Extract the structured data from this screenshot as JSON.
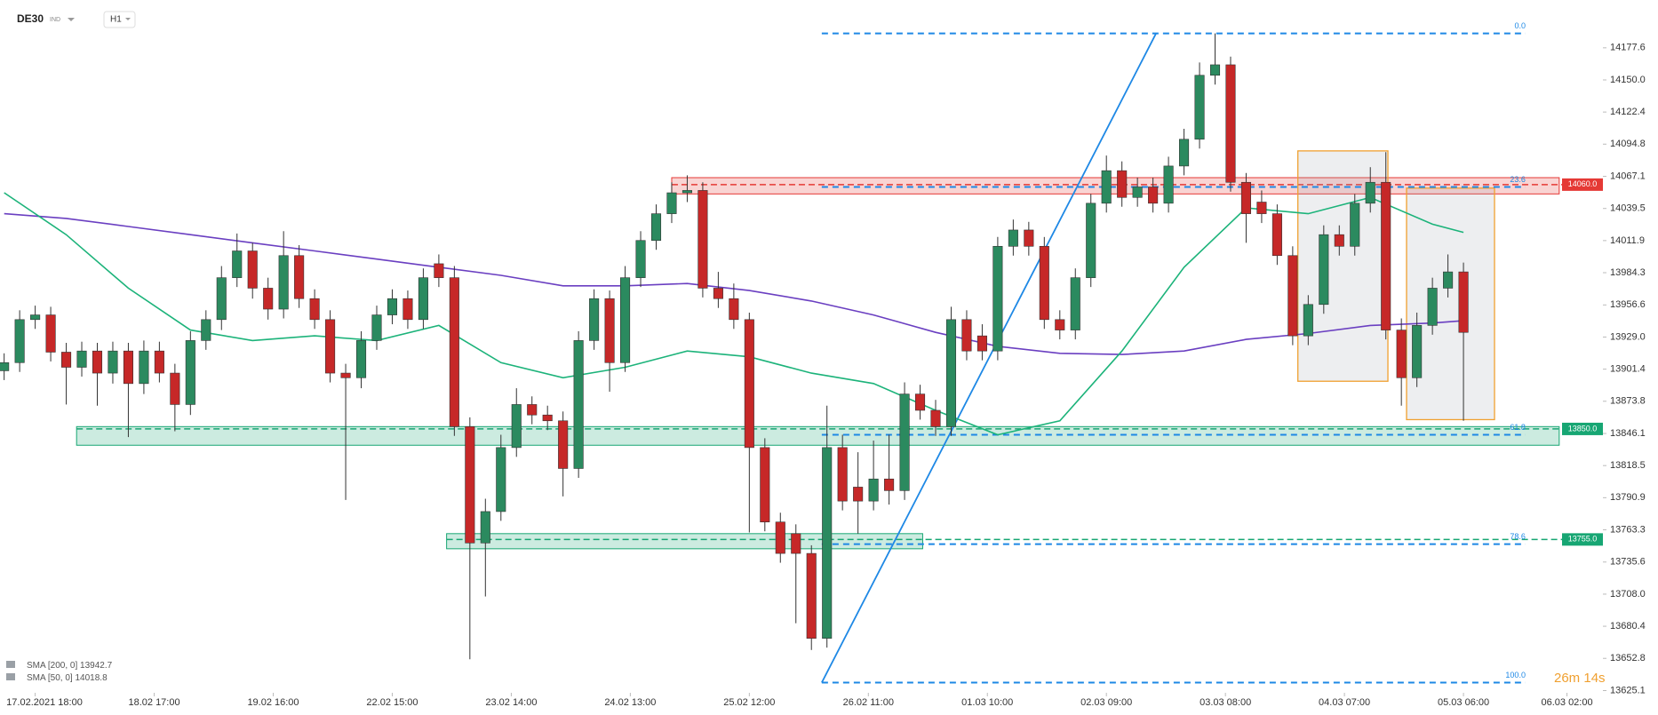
{
  "header": {
    "symbol": "DE30",
    "market": "IND",
    "interval": "H1"
  },
  "chart_data": {
    "type": "candlestick",
    "x": [
      -6,
      -3,
      0,
      3,
      6,
      9,
      12,
      15,
      18,
      21,
      24,
      27,
      30,
      33,
      36,
      39,
      42,
      45,
      48,
      51,
      54,
      57,
      60,
      63,
      66,
      69,
      72,
      75,
      78,
      81,
      84,
      87,
      90,
      93,
      96,
      99,
      102,
      105,
      108,
      111,
      114,
      117,
      120,
      123,
      126,
      129,
      132,
      135,
      138,
      141,
      144,
      147,
      150,
      153,
      156,
      159,
      162,
      165,
      168,
      171,
      174,
      177,
      180,
      183,
      186,
      189,
      192,
      195,
      198,
      201,
      204,
      207,
      210,
      213,
      216,
      219,
      222,
      225,
      228,
      231,
      234,
      237,
      240,
      243,
      246,
      249,
      252,
      255,
      258,
      261,
      264,
      267,
      270,
      273,
      276
    ],
    "open": [
      13900,
      13907,
      13944,
      13948,
      13916,
      13903,
      13917,
      13898,
      13917,
      13889,
      13917,
      13898,
      13871,
      13926,
      13944,
      13980,
      14003,
      13971,
      13953,
      13999,
      13962,
      13944,
      13898,
      13894,
      13926,
      13948,
      13962,
      13944,
      13992,
      13980,
      13852,
      13752,
      13779,
      13834,
      13871,
      13862,
      13857,
      13816,
      13926,
      13962,
      13907,
      13980,
      14012,
      14035,
      14053,
      14055,
      13971,
      13962,
      13944,
      13834,
      13770,
      13760,
      13743,
      13670,
      13834,
      13800,
      13788,
      13807,
      13797,
      13880,
      13866,
      13852,
      13944,
      13930,
      13917,
      14007,
      14021,
      14007,
      13944,
      13935,
      13980,
      14044,
      14072,
      14049,
      14058,
      14044,
      14076,
      14099,
      14154,
      14163,
      14062,
      14045,
      14035,
      13999,
      13930,
      13957,
      14017,
      14007,
      14044,
      14062,
      13935,
      13894,
      13939,
      13971,
      13985
    ],
    "high": [
      13915,
      13952,
      13956,
      13955,
      13924,
      13925,
      13924,
      13925,
      13924,
      13926,
      13925,
      13906,
      13934,
      13952,
      13990,
      14018,
      14010,
      13980,
      14020,
      14008,
      13970,
      13952,
      13906,
      13934,
      13956,
      13970,
      13969,
      13988,
      14000,
      13990,
      13860,
      13790,
      13845,
      13885,
      13878,
      13870,
      13865,
      13934,
      13970,
      13969,
      13990,
      14020,
      14043,
      14062,
      14068,
      14062,
      13985,
      13975,
      13950,
      13842,
      13778,
      13768,
      13750,
      13870,
      13845,
      13830,
      13840,
      13845,
      13890,
      13888,
      13875,
      13955,
      13952,
      13940,
      14015,
      14030,
      14028,
      14015,
      13952,
      13988,
      14052,
      14085,
      14080,
      14066,
      14066,
      14084,
      14108,
      14165,
      14190,
      14170,
      14070,
      14055,
      14043,
      14007,
      13965,
      14025,
      14025,
      14052,
      14075,
      14088,
      13945,
      13950,
      13980,
      14000,
      13993
    ],
    "low": [
      13892,
      13899,
      13936,
      13908,
      13871,
      13895,
      13870,
      13889,
      13843,
      13880,
      13890,
      13848,
      13862,
      13918,
      13935,
      13972,
      13962,
      13944,
      13945,
      13954,
      13936,
      13890,
      13789,
      13885,
      13918,
      13940,
      13936,
      13936,
      13972,
      13844,
      13652,
      13706,
      13771,
      13826,
      13854,
      13849,
      13792,
      13808,
      13918,
      13882,
      13899,
      13972,
      14004,
      14027,
      14045,
      13963,
      13954,
      13936,
      13761,
      13762,
      13735,
      13683,
      13660,
      13662,
      13780,
      13760,
      13780,
      13785,
      13789,
      13858,
      13844,
      13844,
      13909,
      13909,
      13909,
      13999,
      13999,
      13936,
      13927,
      13927,
      13972,
      14036,
      14041,
      14041,
      14036,
      14036,
      14068,
      14091,
      14146,
      14054,
      14010,
      14027,
      13991,
      13922,
      13922,
      13949,
      13999,
      13999,
      14036,
      13927,
      13870,
      13886,
      13931,
      13963,
      13857
    ],
    "close": [
      13907,
      13944,
      13948,
      13916,
      13903,
      13917,
      13898,
      13917,
      13889,
      13917,
      13898,
      13871,
      13926,
      13944,
      13980,
      14003,
      13971,
      13953,
      13999,
      13962,
      13944,
      13898,
      13894,
      13926,
      13948,
      13962,
      13944,
      13980,
      13980,
      13852,
      13752,
      13779,
      13834,
      13871,
      13862,
      13857,
      13816,
      13926,
      13962,
      13907,
      13980,
      14012,
      14035,
      14053,
      14055,
      13971,
      13962,
      13944,
      13834,
      13770,
      13743,
      13743,
      13670,
      13834,
      13788,
      13788,
      13807,
      13797,
      13880,
      13866,
      13852,
      13944,
      13917,
      13917,
      14007,
      14021,
      14007,
      13944,
      13935,
      13980,
      14044,
      14072,
      14049,
      14058,
      14044,
      14076,
      14099,
      14154,
      14163,
      14062,
      14035,
      14035,
      13999,
      13930,
      13957,
      14017,
      14007,
      14044,
      14062,
      13935,
      13894,
      13939,
      13971,
      13985,
      13933
    ],
    "up_color": "#2b8a5f",
    "down_color": "#c62828",
    "xlim": [
      -6.8,
      301.4
    ],
    "xticks": [
      {
        "value": 0,
        "label": "17.02.2021 18:00"
      },
      {
        "value": 23,
        "label": "18.02 17:00"
      },
      {
        "value": 46,
        "label": "19.02 16:00"
      },
      {
        "value": 69,
        "label": "22.02 15:00"
      },
      {
        "value": 92,
        "label": "23.02 14:00"
      },
      {
        "value": 115,
        "label": "24.02 13:00"
      },
      {
        "value": 138,
        "label": "25.02 12:00"
      },
      {
        "value": 161,
        "label": "26.02 11:00"
      },
      {
        "value": 184,
        "label": "01.03 10:00"
      },
      {
        "value": 207,
        "label": "02.03 09:00"
      },
      {
        "value": 230,
        "label": "03.03 08:00"
      },
      {
        "value": 253,
        "label": "04.03 07:00"
      },
      {
        "value": 276,
        "label": "05.03 06:00"
      },
      {
        "value": 296,
        "label": "06.03 02:00"
      }
    ],
    "ylim": [
      13623.2,
      14218.7
    ],
    "yticks": [
      14177.6,
      {
        "value": 14150,
        "label": "14150.0"
      },
      14122.4,
      14094.8,
      14067.1,
      14039.5,
      14011.9,
      13984.3,
      13956.6,
      {
        "value": 13929,
        "label": "13929.0"
      },
      13901.4,
      13873.8,
      13846.1,
      13818.5,
      13790.9,
      13763.3,
      13735.6,
      {
        "value": 13708,
        "label": "13708.0"
      },
      13680.4,
      13652.8,
      13625.1
    ],
    "sma": [
      {
        "name": "SMA [200, 0]",
        "last": 13942.7,
        "color": "#6a3fc1",
        "x": [
          -6,
          6,
          18,
          30,
          42,
          54,
          66,
          78,
          90,
          102,
          114,
          126,
          138,
          150,
          162,
          174,
          186,
          198,
          210,
          222,
          234,
          246,
          258,
          270,
          276
        ],
        "values": [
          14035,
          14031,
          14024,
          14017,
          14010,
          14003,
          13996,
          13989,
          13982,
          13973,
          13973,
          13975,
          13969,
          13960,
          13948,
          13933,
          13921,
          13915,
          13914,
          13917,
          13927,
          13932,
          13939,
          13941,
          13943
        ]
      },
      {
        "name": "SMA [50, 0]",
        "last": 14018.8,
        "color": "#1cb37a",
        "x": [
          -6,
          6,
          18,
          30,
          42,
          54,
          66,
          78,
          90,
          102,
          114,
          126,
          138,
          150,
          162,
          174,
          186,
          198,
          210,
          222,
          234,
          246,
          258,
          270,
          276
        ],
        "values": [
          14053,
          14017,
          13971,
          13935,
          13926,
          13930,
          13926,
          13939,
          13907,
          13894,
          13903,
          13917,
          13912,
          13898,
          13889,
          13866,
          13845,
          13857,
          13917,
          13989,
          14040,
          14035,
          14049,
          14026,
          14019
        ]
      }
    ],
    "zones": [
      {
        "label": "14060.0",
        "value": 14060,
        "color": "#e53935",
        "low": 14052,
        "high": 14066,
        "from": 123,
        "to": 294.5
      },
      {
        "label": "13850.0",
        "value": 13850,
        "color": "#17a673",
        "low": 13836,
        "high": 13852,
        "from": 8,
        "to": 294.5
      },
      {
        "label": "13755.0",
        "value": 13755,
        "color": "#17a673",
        "low": 13747,
        "high": 13760,
        "from": 79.5,
        "to": 171.5
      }
    ],
    "fibonacci": {
      "color": "#1e88e5",
      "from": 152,
      "to": 288,
      "levels": [
        {
          "value": 14190,
          "label": "0.0"
        },
        {
          "value": 14058,
          "label": "23.6"
        },
        {
          "value": 13845,
          "label": "61.8"
        },
        {
          "value": 13751,
          "label": "78.6"
        },
        {
          "value": 13632,
          "label": "100.0"
        }
      ]
    },
    "trend_line": {
      "color": "#1e88e5",
      "x": [
        152,
        216.6
      ],
      "y": [
        13632,
        14190
      ]
    },
    "boxes": {
      "color": "#f0a030",
      "items": [
        {
          "x": [
            244,
            261.4
          ],
          "y": [
            13891,
            14089
          ]
        },
        {
          "x": [
            265,
            282
          ],
          "y": [
            13858,
            14057
          ]
        }
      ]
    },
    "countdown": "26m 14s"
  }
}
